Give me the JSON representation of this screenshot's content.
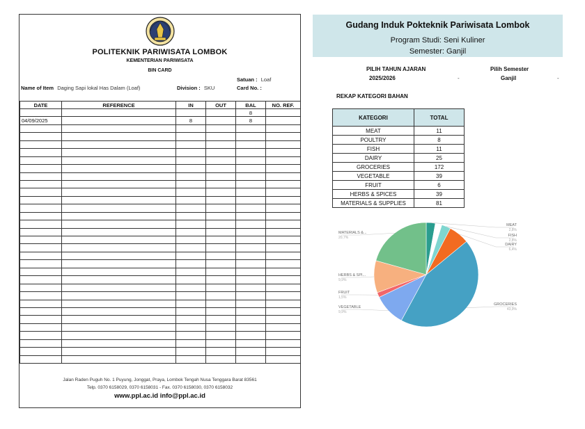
{
  "bin_card": {
    "org_name": "POLITEKNIK PARIWISATA LOMBOK",
    "ministry": "KEMENTERIAN PARIWISATA",
    "card_title": "BIN CARD",
    "satuan_label": "Satuan :",
    "satuan_value": "Loaf",
    "item_label": "Name of Item",
    "item_value": "Daging Sapi lokal Has Dalam (Loaf)",
    "division_label": "Division :",
    "division_value": "SKU",
    "card_no_label": "Card No. :",
    "card_no_value": "",
    "columns": [
      "DATE",
      "REFERENCE",
      "IN",
      "OUT",
      "BAL",
      "NO. REF."
    ],
    "rows": [
      {
        "date": "",
        "reference": "",
        "in": "",
        "out": "",
        "bal": "8",
        "no_ref": ""
      },
      {
        "date": "04/09/2025",
        "reference": "",
        "in": "8",
        "out": "",
        "bal": "8",
        "no_ref": ""
      }
    ],
    "footer_address": "Jalan Raden Puguh No. 1 Puyung, Jonggat, Praya, Lombok Tengah Nusa Tenggara Barat 83561",
    "footer_phone": "Telp. 0370 6158029, 0370 6158031 - Fax. 0370 6158030, 0370 6158032",
    "footer_web": "www.ppl.ac.id  info@ppl.ac.id"
  },
  "warehouse": {
    "title": "Gudang Induk Pokteknik Pariwisata Lombok",
    "program": "Program Studi: Seni Kuliner",
    "semester": "Semester: Ganjil",
    "year_label": "PILIH TAHUN AJARAN",
    "year_value": "2025/2026",
    "semester_label": "Pilih Semester",
    "semester_value": "Ganjil",
    "rekap_label": "REKAP KATEGORI BAHAN",
    "table_headers": [
      "KATEGORI",
      "TOTAL"
    ],
    "categories": [
      {
        "name": "MEAT",
        "total": "11"
      },
      {
        "name": "POULTRY",
        "total": "8"
      },
      {
        "name": "FISH",
        "total": "11"
      },
      {
        "name": "DAIRY",
        "total": "25"
      },
      {
        "name": "GROCERIES",
        "total": "172"
      },
      {
        "name": "VEGETABLE",
        "total": "39"
      },
      {
        "name": "FRUIT",
        "total": "6"
      },
      {
        "name": "HERBS & SPICES",
        "total": "39"
      },
      {
        "name": "MATERIALS & SUPPLIES",
        "total": "81"
      }
    ]
  },
  "chart_data": {
    "type": "pie",
    "categories": [
      "MEAT",
      "POULTRY",
      "FISH",
      "DAIRY",
      "GROCERIES",
      "VEGETABLE",
      "FRUIT",
      "HERBS & SPICES",
      "MATERIALS & SUPPLIES"
    ],
    "values": [
      11,
      8,
      11,
      25,
      172,
      39,
      6,
      39,
      81
    ],
    "colors": [
      "#2a9d8f",
      "#ffffff",
      "#7fd6d0",
      "#f26b21",
      "#45a1c4",
      "#7ea9ef",
      "#f2666a",
      "#f7b07f",
      "#72c08a"
    ],
    "labels": [
      {
        "name": "MEAT",
        "pct": "2,8%"
      },
      {
        "name": "FISH",
        "pct": "2,8%"
      },
      {
        "name": "DAIRY",
        "pct": "6,4%"
      },
      {
        "name": "GROCERIES",
        "pct": "43,9%"
      },
      {
        "name": "VEGETABLE",
        "pct": "9,9%"
      },
      {
        "name": "FRUIT",
        "pct": "1,5%"
      },
      {
        "name": "HERBS & SPI...",
        "pct": "9,9%"
      },
      {
        "name": "MATERIALS &...",
        "pct": "20,7%"
      }
    ]
  }
}
